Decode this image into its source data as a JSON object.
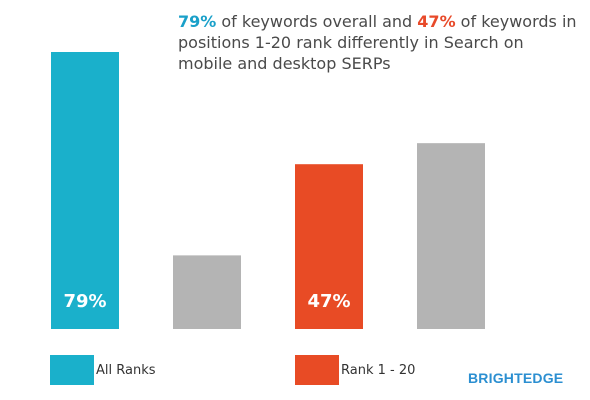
{
  "headline": {
    "pct_all": "79%",
    "text_1": " of keywords overall and ",
    "pct_top": "47%",
    "text_2": " of keywords in positions 1-20 rank differently in Search on mobile and desktop SERPs"
  },
  "colors": {
    "all_ranks": "#1ab0cb",
    "rank_1_20": "#e84b25",
    "other": "#b4b4b4",
    "brand": "#2b8fd1"
  },
  "chart_data": {
    "type": "bar",
    "title": "79% of keywords overall and 47% of keywords in positions 1-20 rank differently in Search on mobile and desktop SERPs",
    "ylim": [
      0,
      100
    ],
    "grid": false,
    "legend_placement": "bottom",
    "bars": [
      {
        "value": 79,
        "color": "#1ab0cb",
        "data_label": "79%"
      },
      {
        "value": 21,
        "color": "#b4b4b4",
        "data_label": ""
      },
      {
        "value": 47,
        "color": "#e84b25",
        "data_label": "47%"
      },
      {
        "value": 53,
        "color": "#b4b4b4",
        "data_label": ""
      }
    ],
    "legend": [
      {
        "label": "All Ranks",
        "color": "#1ab0cb"
      },
      {
        "label": "Rank 1 - 20",
        "color": "#e84b25"
      }
    ]
  },
  "brand": {
    "name": "BRIGHTEDGE"
  }
}
